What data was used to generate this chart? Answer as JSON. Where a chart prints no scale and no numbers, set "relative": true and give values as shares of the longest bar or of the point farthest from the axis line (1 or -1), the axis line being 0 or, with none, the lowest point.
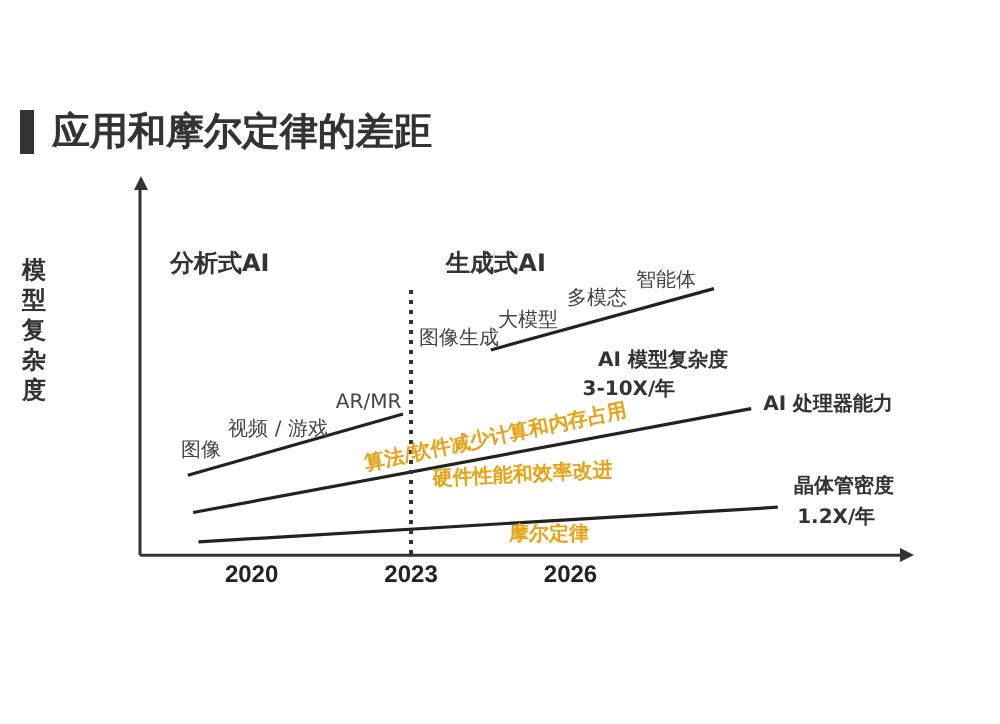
{
  "chart_data": {
    "type": "line",
    "relative": true,
    "title": "应用和摩尔定律的差距",
    "ylabel": "模型复杂度",
    "xlim": [
      2017.9,
      2032.2
    ],
    "xticks": [
      2020,
      2023,
      2026
    ],
    "tick_labels": "x",
    "grid": false,
    "legend": false,
    "marker": "none",
    "line_style": "solid",
    "series": [
      {
        "name": "AI 模型复杂度",
        "color": "#222222",
        "x": [
          2018.8,
          2022.85,
          2023.7,
          2024.5,
          2028.7
        ],
        "values": [
          0.3,
          0.53,
          null,
          0.77,
          1
        ]
      },
      {
        "name": "AI 处理器能力",
        "color": "#222222",
        "x": [
          2018.9,
          2029.4
        ],
        "values": [
          0.16,
          0.55
        ]
      },
      {
        "name": "晶体管密度",
        "color": "#222222",
        "x": [
          2019.0,
          2029.9
        ],
        "values": [
          0.05,
          0.18
        ]
      }
    ],
    "ref_lines": [
      {
        "axis": "x",
        "value": 2023,
        "line_style": "dotted",
        "color": "#333333"
      }
    ],
    "annotations": [
      "分析式AI",
      "生成式AI",
      "图像",
      "视频 / 游戏",
      "AR/MR",
      "图像生成",
      "大模型",
      "多模态",
      "智能体",
      "3-10X/年",
      "算法/软件减少计算和内存占用",
      "硬件性能和效率改进",
      "摩尔定律",
      "1.2X/年"
    ]
  }
}
